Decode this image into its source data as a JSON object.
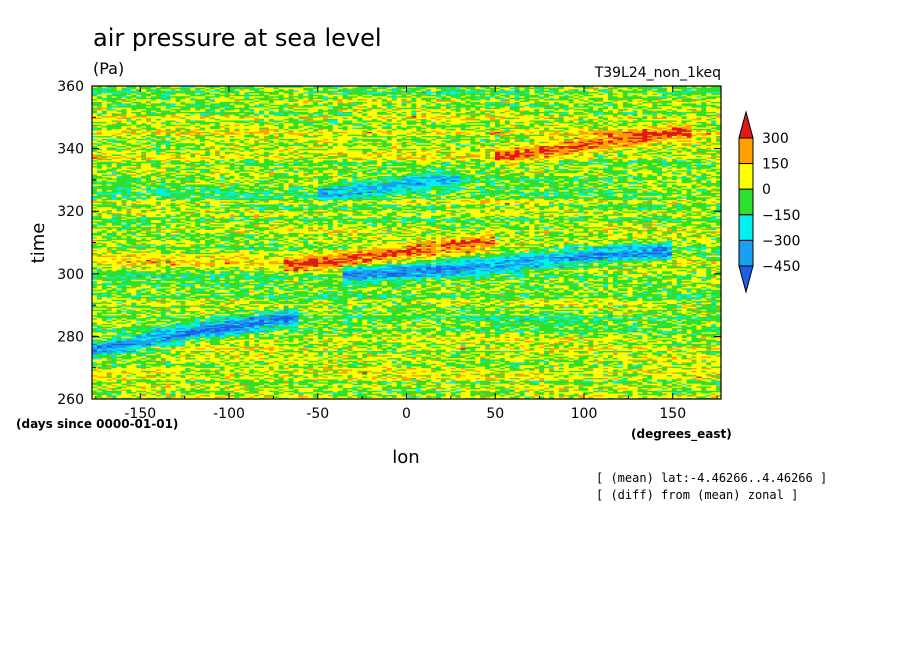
{
  "chart_data": {
    "type": "heatmap",
    "title": "air pressure at sea level",
    "units": "(Pa)",
    "run_label": "T39L24_non_1keq",
    "xlabel": "lon",
    "ylabel": "time",
    "x_units": "(degrees_east)",
    "y_units": "(days since 0000-01-01)",
    "xlim": [
      -177.1875,
      177.1875
    ],
    "ylim": [
      260,
      360
    ],
    "x_ticks": [
      -150,
      -100,
      -50,
      0,
      50,
      100,
      150
    ],
    "x_tick_labels": [
      "-150",
      "-100",
      "-50",
      "0",
      "50",
      "100",
      "150"
    ],
    "y_ticks": [
      260,
      280,
      300,
      320,
      340,
      360
    ],
    "y_tick_labels": [
      "260",
      "280",
      "300",
      "320",
      "340",
      "360"
    ],
    "colorbar": {
      "levels": [
        -450,
        -300,
        -150,
        0,
        150,
        300
      ],
      "labels": [
        "300",
        "150",
        "0",
        "−150",
        "−300",
        "−450"
      ],
      "colors": [
        "#1f5fe8",
        "#1aa0f0",
        "#00f0f0",
        "#2ee02e",
        "#ffff00",
        "#ffa000",
        "#e01818"
      ],
      "extend": "both"
    },
    "notes": [
      "[ (mean) lat:-4.46266..4.46266 ]",
      "[ (diff) from (mean) zonal ]"
    ],
    "features": [
      {
        "kind": "negative band",
        "from": [
          -175,
          276
        ],
        "to": [
          -70,
          286
        ],
        "min": -450
      },
      {
        "kind": "negative band",
        "from": [
          -25,
          300
        ],
        "to": [
          140,
          307
        ],
        "min": -450
      },
      {
        "kind": "positive band",
        "from": [
          -60,
          303
        ],
        "to": [
          40,
          310
        ],
        "max": 300
      },
      {
        "kind": "positive band",
        "from": [
          60,
          338
        ],
        "to": [
          150,
          345
        ],
        "max": 300
      },
      {
        "kind": "negative band",
        "from": [
          -40,
          326
        ],
        "to": [
          20,
          330
        ],
        "min": -300
      }
    ]
  },
  "colors": {
    "background": "#ffffff",
    "frame": "#000000"
  }
}
